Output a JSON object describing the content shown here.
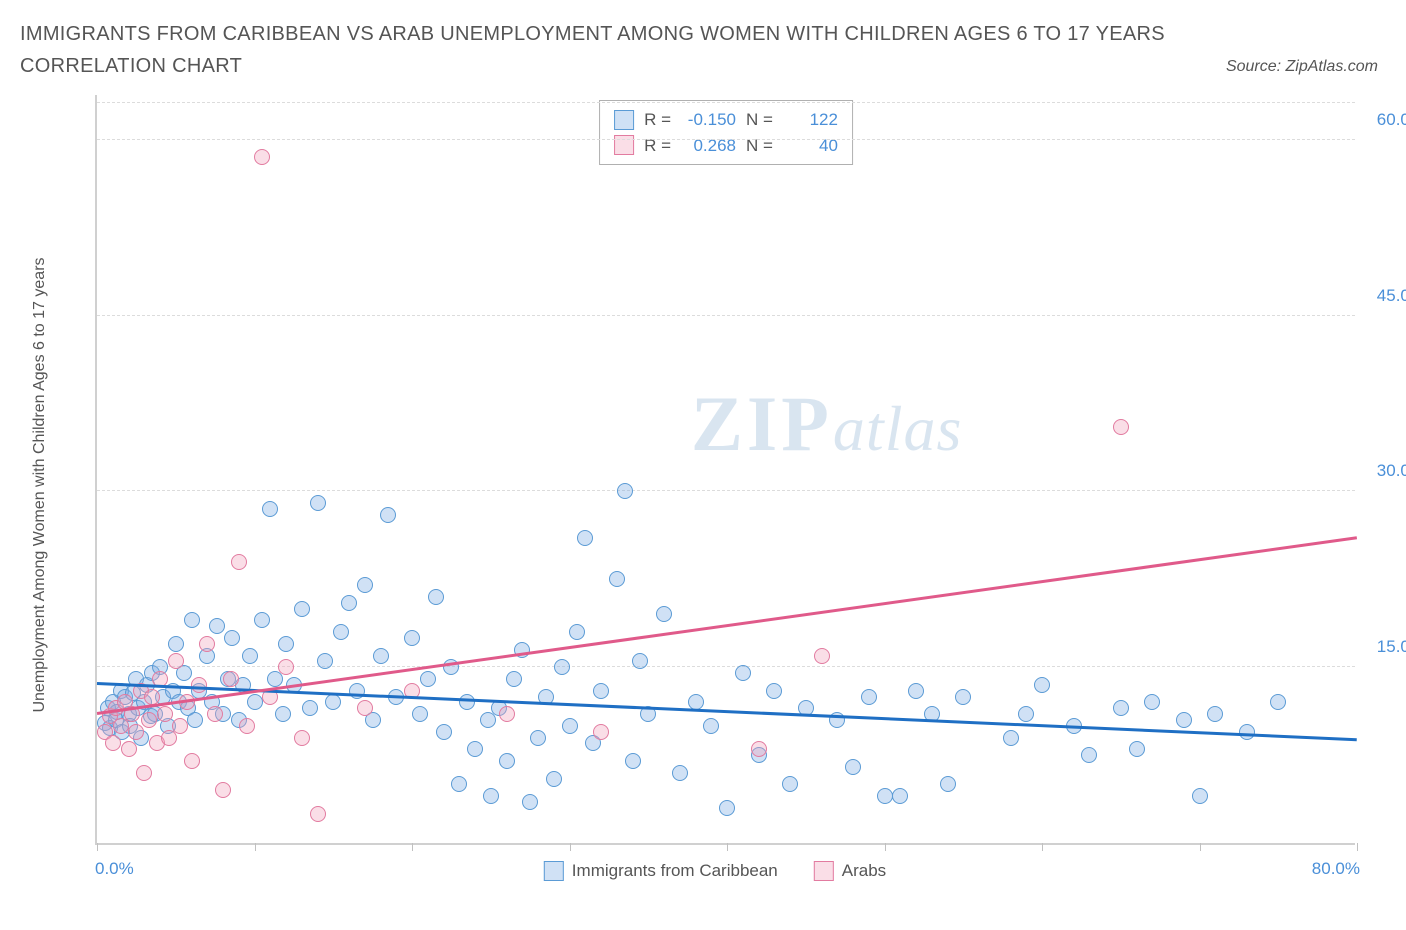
{
  "title": "IMMIGRANTS FROM CARIBBEAN VS ARAB UNEMPLOYMENT AMONG WOMEN WITH CHILDREN AGES 6 TO 17 YEARS CORRELATION CHART",
  "source": "Source: ZipAtlas.com",
  "ylabel": "Unemployment Among Women with Children Ages 6 to 17 years",
  "watermark": {
    "zip": "ZIP",
    "atlas": "atlas"
  },
  "chart": {
    "type": "scatter",
    "xlim": [
      0,
      80
    ],
    "ylim": [
      0,
      64
    ],
    "x_ticks": [
      0,
      10,
      20,
      30,
      40,
      50,
      60,
      70,
      80
    ],
    "y_gridlines": [
      15,
      30,
      45,
      60
    ],
    "y_tick_labels": [
      "15.0%",
      "30.0%",
      "45.0%",
      "60.0%"
    ],
    "x_min_label": "0.0%",
    "x_max_label": "80.0%",
    "background_color": "#ffffff",
    "grid_color": "#dcdcdc",
    "axis_color": "#d0d0d0",
    "marker_radius": 8,
    "marker_stroke_width": 1.5,
    "trend_line_width": 2.5,
    "series": [
      {
        "name": "Immigrants from Caribbean",
        "fill": "rgba(120,170,225,0.35)",
        "stroke": "#5b9bd5",
        "trend_color": "#1f6fc4",
        "trend": {
          "x1": 0,
          "y1": 13.5,
          "x2": 80,
          "y2": 8.7
        },
        "R": "-0.150",
        "N": "122",
        "points": [
          [
            0.5,
            10.2
          ],
          [
            0.7,
            11.5
          ],
          [
            0.8,
            9.8
          ],
          [
            1.0,
            12.0
          ],
          [
            1.2,
            10.5
          ],
          [
            1.3,
            11.2
          ],
          [
            1.5,
            13.0
          ],
          [
            1.6,
            9.5
          ],
          [
            1.8,
            12.5
          ],
          [
            2.0,
            11.0
          ],
          [
            2.1,
            10.0
          ],
          [
            2.3,
            12.8
          ],
          [
            2.5,
            14.0
          ],
          [
            2.6,
            11.5
          ],
          [
            2.8,
            9.0
          ],
          [
            3.0,
            12.0
          ],
          [
            3.2,
            13.5
          ],
          [
            3.4,
            10.8
          ],
          [
            3.5,
            14.5
          ],
          [
            3.7,
            11.0
          ],
          [
            4.0,
            15.0
          ],
          [
            4.2,
            12.5
          ],
          [
            4.5,
            10.0
          ],
          [
            4.8,
            13.0
          ],
          [
            5.0,
            17.0
          ],
          [
            5.2,
            12.0
          ],
          [
            5.5,
            14.5
          ],
          [
            5.8,
            11.5
          ],
          [
            6.0,
            19.0
          ],
          [
            6.2,
            10.5
          ],
          [
            6.5,
            13.0
          ],
          [
            7.0,
            16.0
          ],
          [
            7.3,
            12.0
          ],
          [
            7.6,
            18.5
          ],
          [
            8.0,
            11.0
          ],
          [
            8.3,
            14.0
          ],
          [
            8.6,
            17.5
          ],
          [
            9.0,
            10.5
          ],
          [
            9.3,
            13.5
          ],
          [
            9.7,
            16.0
          ],
          [
            10.0,
            12.0
          ],
          [
            10.5,
            19.0
          ],
          [
            11.0,
            28.5
          ],
          [
            11.3,
            14.0
          ],
          [
            11.8,
            11.0
          ],
          [
            12.0,
            17.0
          ],
          [
            12.5,
            13.5
          ],
          [
            13.0,
            20.0
          ],
          [
            13.5,
            11.5
          ],
          [
            14.0,
            29.0
          ],
          [
            14.5,
            15.5
          ],
          [
            15.0,
            12.0
          ],
          [
            15.5,
            18.0
          ],
          [
            16.0,
            20.5
          ],
          [
            16.5,
            13.0
          ],
          [
            17.0,
            22.0
          ],
          [
            17.5,
            10.5
          ],
          [
            18.0,
            16.0
          ],
          [
            18.5,
            28.0
          ],
          [
            19.0,
            12.5
          ],
          [
            20.0,
            17.5
          ],
          [
            20.5,
            11.0
          ],
          [
            21.0,
            14.0
          ],
          [
            21.5,
            21.0
          ],
          [
            22.0,
            9.5
          ],
          [
            22.5,
            15.0
          ],
          [
            23.0,
            5.0
          ],
          [
            23.5,
            12.0
          ],
          [
            24.0,
            8.0
          ],
          [
            24.8,
            10.5
          ],
          [
            25.0,
            4.0
          ],
          [
            25.5,
            11.5
          ],
          [
            26.0,
            7.0
          ],
          [
            26.5,
            14.0
          ],
          [
            27.0,
            16.5
          ],
          [
            27.5,
            3.5
          ],
          [
            28.0,
            9.0
          ],
          [
            28.5,
            12.5
          ],
          [
            29.0,
            5.5
          ],
          [
            29.5,
            15.0
          ],
          [
            30.0,
            10.0
          ],
          [
            30.5,
            18.0
          ],
          [
            31.0,
            26.0
          ],
          [
            31.5,
            8.5
          ],
          [
            32.0,
            13.0
          ],
          [
            33.0,
            22.5
          ],
          [
            33.5,
            30.0
          ],
          [
            34.0,
            7.0
          ],
          [
            34.5,
            15.5
          ],
          [
            35.0,
            11.0
          ],
          [
            36.0,
            19.5
          ],
          [
            37.0,
            6.0
          ],
          [
            38.0,
            12.0
          ],
          [
            39.0,
            10.0
          ],
          [
            40.0,
            3.0
          ],
          [
            41.0,
            14.5
          ],
          [
            42.0,
            7.5
          ],
          [
            43.0,
            13.0
          ],
          [
            44.0,
            5.0
          ],
          [
            45.0,
            11.5
          ],
          [
            47.0,
            10.5
          ],
          [
            48.0,
            6.5
          ],
          [
            49.0,
            12.5
          ],
          [
            50.0,
            4.0
          ],
          [
            51.0,
            4.0
          ],
          [
            52.0,
            13.0
          ],
          [
            53.0,
            11.0
          ],
          [
            54.0,
            5.0
          ],
          [
            55.0,
            12.5
          ],
          [
            58.0,
            9.0
          ],
          [
            59.0,
            11.0
          ],
          [
            60.0,
            13.5
          ],
          [
            62.0,
            10.0
          ],
          [
            63.0,
            7.5
          ],
          [
            65.0,
            11.5
          ],
          [
            66.0,
            8.0
          ],
          [
            67.0,
            12.0
          ],
          [
            69.0,
            10.5
          ],
          [
            70.0,
            4.0
          ],
          [
            71.0,
            11.0
          ],
          [
            73.0,
            9.5
          ],
          [
            75.0,
            12.0
          ]
        ]
      },
      {
        "name": "Arabs",
        "fill": "rgba(240,160,185,0.35)",
        "stroke": "#e27ba0",
        "trend_color": "#e05a8a",
        "trend": {
          "x1": 0,
          "y1": 11.0,
          "x2": 80,
          "y2": 26.0
        },
        "R": "0.268",
        "N": "40",
        "points": [
          [
            0.5,
            9.5
          ],
          [
            0.8,
            10.8
          ],
          [
            1.0,
            8.5
          ],
          [
            1.2,
            11.5
          ],
          [
            1.5,
            10.0
          ],
          [
            1.8,
            12.0
          ],
          [
            2.0,
            8.0
          ],
          [
            2.2,
            11.0
          ],
          [
            2.5,
            9.5
          ],
          [
            2.8,
            13.0
          ],
          [
            3.0,
            6.0
          ],
          [
            3.3,
            10.5
          ],
          [
            3.5,
            12.5
          ],
          [
            3.8,
            8.5
          ],
          [
            4.0,
            14.0
          ],
          [
            4.3,
            11.0
          ],
          [
            4.6,
            9.0
          ],
          [
            5.0,
            15.5
          ],
          [
            5.3,
            10.0
          ],
          [
            5.7,
            12.0
          ],
          [
            6.0,
            7.0
          ],
          [
            6.5,
            13.5
          ],
          [
            7.0,
            17.0
          ],
          [
            7.5,
            11.0
          ],
          [
            8.0,
            4.5
          ],
          [
            8.5,
            14.0
          ],
          [
            9.0,
            24.0
          ],
          [
            9.5,
            10.0
          ],
          [
            10.5,
            58.5
          ],
          [
            11.0,
            12.5
          ],
          [
            12.0,
            15.0
          ],
          [
            13.0,
            9.0
          ],
          [
            14.0,
            2.5
          ],
          [
            17.0,
            11.5
          ],
          [
            20.0,
            13.0
          ],
          [
            26.0,
            11.0
          ],
          [
            32.0,
            9.5
          ],
          [
            42.0,
            8.0
          ],
          [
            46.0,
            16.0
          ],
          [
            65.0,
            35.5
          ]
        ]
      }
    ]
  },
  "stats_label_R": "R =",
  "stats_label_N": "N =",
  "legend": [
    {
      "label": "Immigrants from Caribbean",
      "fill": "rgba(120,170,225,0.35)",
      "stroke": "#5b9bd5"
    },
    {
      "label": "Arabs",
      "fill": "rgba(240,160,185,0.35)",
      "stroke": "#e27ba0"
    }
  ]
}
